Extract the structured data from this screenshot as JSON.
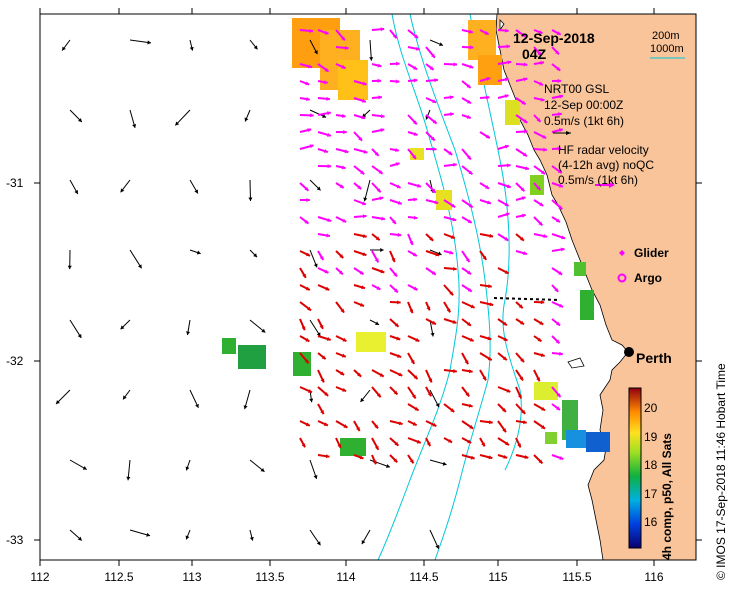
{
  "header": {
    "date": "12-Sep-2018",
    "time": "04Z",
    "depth_200": "200m",
    "depth_1000": "1000m"
  },
  "legend": {
    "model_line1": "NRT00 GSL",
    "model_line2": "12-Sep 00:00Z",
    "model_scale": "0.5m/s (1kt 6h)",
    "hf_line1": "HF radar velocity",
    "hf_line2": "(4-12h avg) noQC",
    "hf_scale": "0.5m/s (1kt 6h)",
    "glider": "Glider",
    "argo": "Argo",
    "city": "Perth"
  },
  "colorbar": {
    "ticks": [
      "20",
      "19",
      "18",
      "17",
      "16"
    ],
    "label": "4h comp, p50, All Sats"
  },
  "credit": "© IMOS 17-Sep-2018 11:46 Hobart Time",
  "axes": {
    "x_ticks": [
      "112",
      "112.5",
      "113",
      "113.5",
      "114",
      "114.5",
      "115",
      "115.5",
      "116"
    ],
    "y_ticks": [
      "-31",
      "-32",
      "-33"
    ],
    "xlim": [
      112,
      116.3
    ],
    "ylim": [
      -33.1,
      -30.1
    ]
  },
  "colors": {
    "land": "#f9c49a",
    "model_vectors": "#000000",
    "hf_vectors_offshore": "#ff00ff",
    "hf_vectors_nearshore": "#dd0000",
    "isobath": "#00c8d8",
    "argo": "#ff00ff",
    "glider": "#ff00ff"
  }
}
